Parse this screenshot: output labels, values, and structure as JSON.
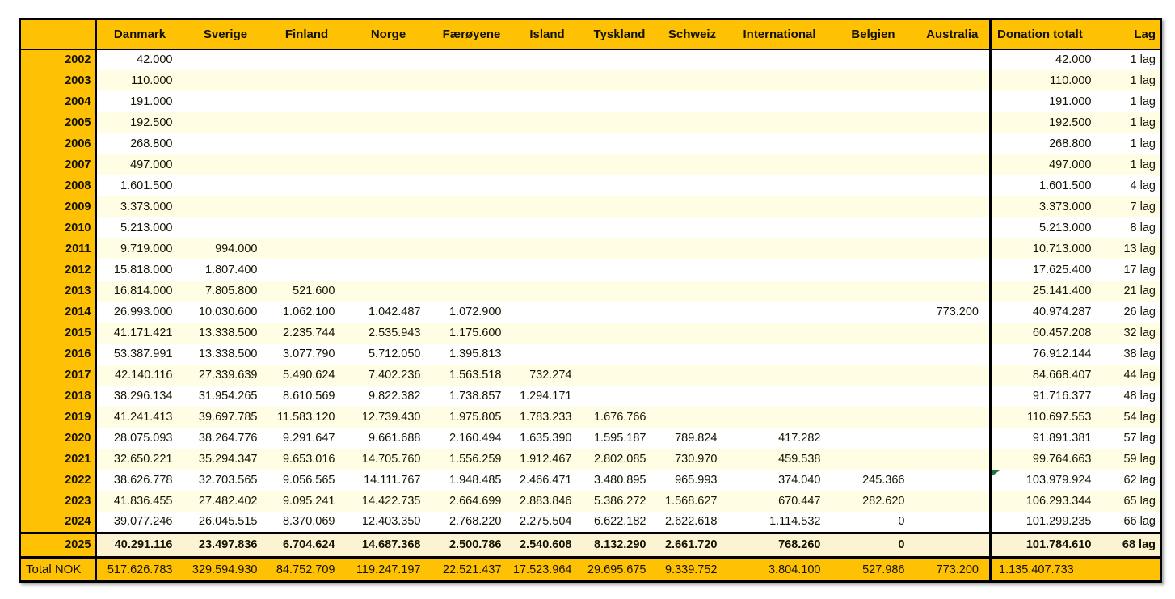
{
  "chart_data": {
    "type": "table",
    "columns": [
      "",
      "Danmark",
      "Sverige",
      "Finland",
      "Norge",
      "Færøyene",
      "Island",
      "Tyskland",
      "Schweiz",
      "International",
      "Belgien",
      "Australia",
      "Donation totalt",
      "Lag"
    ],
    "country_columns": [
      "Danmark",
      "Sverige",
      "Finland",
      "Norge",
      "Færøyene",
      "Island",
      "Tyskland",
      "Schweiz",
      "International",
      "Belgien",
      "Australia"
    ],
    "rows": [
      {
        "year": "2002",
        "values": [
          "42.000",
          "",
          "",
          "",
          "",
          "",
          "",
          "",
          "",
          "",
          ""
        ],
        "donation_total": "42.000",
        "lag": "1 lag"
      },
      {
        "year": "2003",
        "values": [
          "110.000",
          "",
          "",
          "",
          "",
          "",
          "",
          "",
          "",
          "",
          ""
        ],
        "donation_total": "110.000",
        "lag": "1 lag"
      },
      {
        "year": "2004",
        "values": [
          "191.000",
          "",
          "",
          "",
          "",
          "",
          "",
          "",
          "",
          "",
          ""
        ],
        "donation_total": "191.000",
        "lag": "1 lag"
      },
      {
        "year": "2005",
        "values": [
          "192.500",
          "",
          "",
          "",
          "",
          "",
          "",
          "",
          "",
          "",
          ""
        ],
        "donation_total": "192.500",
        "lag": "1 lag"
      },
      {
        "year": "2006",
        "values": [
          "268.800",
          "",
          "",
          "",
          "",
          "",
          "",
          "",
          "",
          "",
          ""
        ],
        "donation_total": "268.800",
        "lag": "1 lag"
      },
      {
        "year": "2007",
        "values": [
          "497.000",
          "",
          "",
          "",
          "",
          "",
          "",
          "",
          "",
          "",
          ""
        ],
        "donation_total": "497.000",
        "lag": "1 lag"
      },
      {
        "year": "2008",
        "values": [
          "1.601.500",
          "",
          "",
          "",
          "",
          "",
          "",
          "",
          "",
          "",
          ""
        ],
        "donation_total": "1.601.500",
        "lag": "4 lag"
      },
      {
        "year": "2009",
        "values": [
          "3.373.000",
          "",
          "",
          "",
          "",
          "",
          "",
          "",
          "",
          "",
          ""
        ],
        "donation_total": "3.373.000",
        "lag": "7 lag"
      },
      {
        "year": "2010",
        "values": [
          "5.213.000",
          "",
          "",
          "",
          "",
          "",
          "",
          "",
          "",
          "",
          ""
        ],
        "donation_total": "5.213.000",
        "lag": "8 lag"
      },
      {
        "year": "2011",
        "values": [
          "9.719.000",
          "994.000",
          "",
          "",
          "",
          "",
          "",
          "",
          "",
          "",
          ""
        ],
        "donation_total": "10.713.000",
        "lag": "13 lag"
      },
      {
        "year": "2012",
        "values": [
          "15.818.000",
          "1.807.400",
          "",
          "",
          "",
          "",
          "",
          "",
          "",
          "",
          ""
        ],
        "donation_total": "17.625.400",
        "lag": "17 lag"
      },
      {
        "year": "2013",
        "values": [
          "16.814.000",
          "7.805.800",
          "521.600",
          "",
          "",
          "",
          "",
          "",
          "",
          "",
          ""
        ],
        "donation_total": "25.141.400",
        "lag": "21 lag"
      },
      {
        "year": "2014",
        "values": [
          "26.993.000",
          "10.030.600",
          "1.062.100",
          "1.042.487",
          "1.072.900",
          "",
          "",
          "",
          "",
          "",
          "773.200"
        ],
        "donation_total": "40.974.287",
        "lag": "26 lag"
      },
      {
        "year": "2015",
        "values": [
          "41.171.421",
          "13.338.500",
          "2.235.744",
          "2.535.943",
          "1.175.600",
          "",
          "",
          "",
          "",
          "",
          ""
        ],
        "donation_total": "60.457.208",
        "lag": "32 lag"
      },
      {
        "year": "2016",
        "values": [
          "53.387.991",
          "13.338.500",
          "3.077.790",
          "5.712.050",
          "1.395.813",
          "",
          "",
          "",
          "",
          "",
          ""
        ],
        "donation_total": "76.912.144",
        "lag": "38 lag"
      },
      {
        "year": "2017",
        "values": [
          "42.140.116",
          "27.339.639",
          "5.490.624",
          "7.402.236",
          "1.563.518",
          "732.274",
          "",
          "",
          "",
          "",
          ""
        ],
        "donation_total": "84.668.407",
        "lag": "44 lag"
      },
      {
        "year": "2018",
        "values": [
          "38.296.134",
          "31.954.265",
          "8.610.569",
          "9.822.382",
          "1.738.857",
          "1.294.171",
          "",
          "",
          "",
          "",
          ""
        ],
        "donation_total": "91.716.377",
        "lag": "48 lag"
      },
      {
        "year": "2019",
        "values": [
          "41.241.413",
          "39.697.785",
          "11.583.120",
          "12.739.430",
          "1.975.805",
          "1.783.233",
          "1.676.766",
          "",
          "",
          "",
          ""
        ],
        "donation_total": "110.697.553",
        "lag": "54 lag"
      },
      {
        "year": "2020",
        "values": [
          "28.075.093",
          "38.264.776",
          "9.291.647",
          "9.661.688",
          "2.160.494",
          "1.635.390",
          "1.595.187",
          "789.824",
          "417.282",
          "",
          ""
        ],
        "donation_total": "91.891.381",
        "lag": "57 lag"
      },
      {
        "year": "2021",
        "values": [
          "32.650.221",
          "35.294.347",
          "9.653.016",
          "14.705.760",
          "1.556.259",
          "1.912.467",
          "2.802.085",
          "730.970",
          "459.538",
          "",
          ""
        ],
        "donation_total": "99.764.663",
        "lag": "59 lag"
      },
      {
        "year": "2022",
        "values": [
          "38.626.778",
          "32.703.565",
          "9.056.565",
          "14.111.767",
          "1.948.485",
          "2.466.471",
          "3.480.895",
          "965.993",
          "374.040",
          "245.366",
          ""
        ],
        "donation_total": "103.979.924",
        "lag": "62 lag",
        "marker": true
      },
      {
        "year": "2023",
        "values": [
          "41.836.455",
          "27.482.402",
          "9.095.241",
          "14.422.735",
          "2.664.699",
          "2.883.846",
          "5.386.272",
          "1.568.627",
          "670.447",
          "282.620",
          ""
        ],
        "donation_total": "106.293.344",
        "lag": "65 lag"
      },
      {
        "year": "2024",
        "values": [
          "39.077.246",
          "26.045.515",
          "8.370.069",
          "12.403.350",
          "2.768.220",
          "2.275.504",
          "6.622.182",
          "2.622.618",
          "1.114.532",
          "0",
          ""
        ],
        "donation_total": "101.299.235",
        "lag": "66 lag"
      },
      {
        "year": "2025",
        "values": [
          "40.291.116",
          "23.497.836",
          "6.704.624",
          "14.687.368",
          "2.500.786",
          "2.540.608",
          "8.132.290",
          "2.661.720",
          "768.260",
          "0",
          ""
        ],
        "donation_total": "101.784.610",
        "lag": "68 lag",
        "highlight": true
      }
    ],
    "total_row": {
      "label": "Total NOK",
      "values": [
        "517.626.783",
        "329.594.930",
        "84.752.709",
        "119.247.197",
        "22.521.437",
        "17.523.964",
        "29.695.675",
        "9.339.752",
        "3.804.100",
        "527.986",
        "773.200"
      ],
      "donation_total": "1.135.407.733",
      "lag": ""
    }
  },
  "colors": {
    "header_bg": "#FFC103",
    "stripe_bg": "#FFFDE3",
    "highlight_bg": "#FCF3D2",
    "flag_green": "#1F7245",
    "border": "#000000",
    "text": "#141200"
  }
}
